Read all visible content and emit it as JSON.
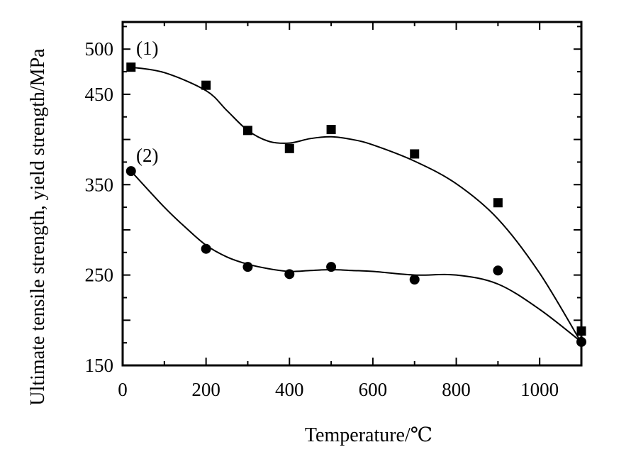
{
  "chart_data": {
    "type": "scatter",
    "title": "",
    "xlabel": "Temperature/℃",
    "ylabel": "Ultimate tensile strength, yield strength/MPa",
    "xlim": [
      0,
      1100
    ],
    "ylim": [
      150,
      530
    ],
    "x_ticks": [
      0,
      200,
      400,
      600,
      800,
      1000
    ],
    "y_ticks": [
      150,
      250,
      350,
      450,
      500
    ],
    "x_tick_labels": [
      "0",
      "200",
      "400",
      "600",
      "800",
      "1000"
    ],
    "y_tick_labels": [
      "150",
      "250",
      "350",
      "450",
      "500"
    ],
    "grid": false,
    "legend": "none",
    "series": [
      {
        "name": "(1)",
        "marker": "square",
        "x": [
          20,
          200,
          300,
          400,
          500,
          700,
          900,
          1100
        ],
        "y": [
          480,
          460,
          410,
          390,
          411,
          384,
          330,
          188
        ],
        "curve_x": [
          20,
          100,
          200,
          250,
          300,
          350,
          400,
          450,
          500,
          550,
          600,
          700,
          800,
          900,
          1000,
          1100
        ],
        "curve_y": [
          480,
          474,
          454,
          432,
          410,
          398,
          396,
          401,
          403,
          400,
          394,
          376,
          351,
          312,
          252,
          175
        ]
      },
      {
        "name": "(2)",
        "marker": "circle",
        "x": [
          20,
          200,
          300,
          400,
          500,
          700,
          900,
          1100
        ],
        "y": [
          365,
          279,
          259,
          251,
          259,
          245,
          255,
          176
        ],
        "curve_x": [
          20,
          100,
          150,
          200,
          250,
          300,
          350,
          400,
          450,
          500,
          550,
          600,
          700,
          800,
          900,
          1000,
          1100
        ],
        "curve_y": [
          365,
          325,
          303,
          283,
          270,
          262,
          257,
          254,
          255,
          256,
          255,
          254,
          250,
          250,
          240,
          212,
          176
        ]
      }
    ]
  }
}
